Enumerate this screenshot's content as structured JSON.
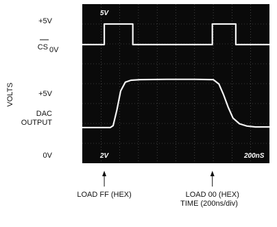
{
  "chart_data": {
    "type": "line",
    "title": "",
    "x_axis": {
      "label": "TIME (200ns/div)",
      "divisions": 10,
      "ns_per_division": 200,
      "range_ns": [
        0,
        2000
      ]
    },
    "y_axis": {
      "label": "VOLTS",
      "channel_labels": {
        "cs_high": "+5V",
        "cs_name": "CS",
        "cs_low": "0V",
        "dac_high": "+5V",
        "dac_name_line1": "DAC",
        "dac_name_line2": "OUTPUT",
        "dac_low": "0V"
      }
    },
    "scope_annotations": {
      "ch1_scale": "5V",
      "ch2_scale": "2V",
      "timebase": "200nS"
    },
    "series": [
      {
        "name": "CS",
        "x_ns": [
          0,
          235,
          235,
          540,
          540,
          1390,
          1390,
          1640,
          1640,
          2000
        ],
        "y_v": [
          0,
          0,
          5,
          5,
          0,
          0,
          5,
          5,
          0,
          0
        ]
      },
      {
        "name": "DAC OUTPUT",
        "x_ns": [
          0,
          300,
          330,
          370,
          410,
          460,
          520,
          620,
          900,
          1200,
          1400,
          1460,
          1510,
          1560,
          1610,
          1680,
          1760,
          1850,
          2000
        ],
        "y_v": [
          0,
          0,
          0.15,
          1.4,
          2.9,
          3.6,
          3.75,
          3.8,
          3.82,
          3.82,
          3.8,
          3.45,
          2.6,
          1.6,
          0.75,
          0.3,
          0.12,
          0.05,
          0.05
        ]
      }
    ],
    "markers": [
      {
        "label": "LOAD FF (HEX)",
        "x_ns": 235
      },
      {
        "label": "LOAD 00 (HEX)",
        "x_ns": 1390
      }
    ]
  }
}
